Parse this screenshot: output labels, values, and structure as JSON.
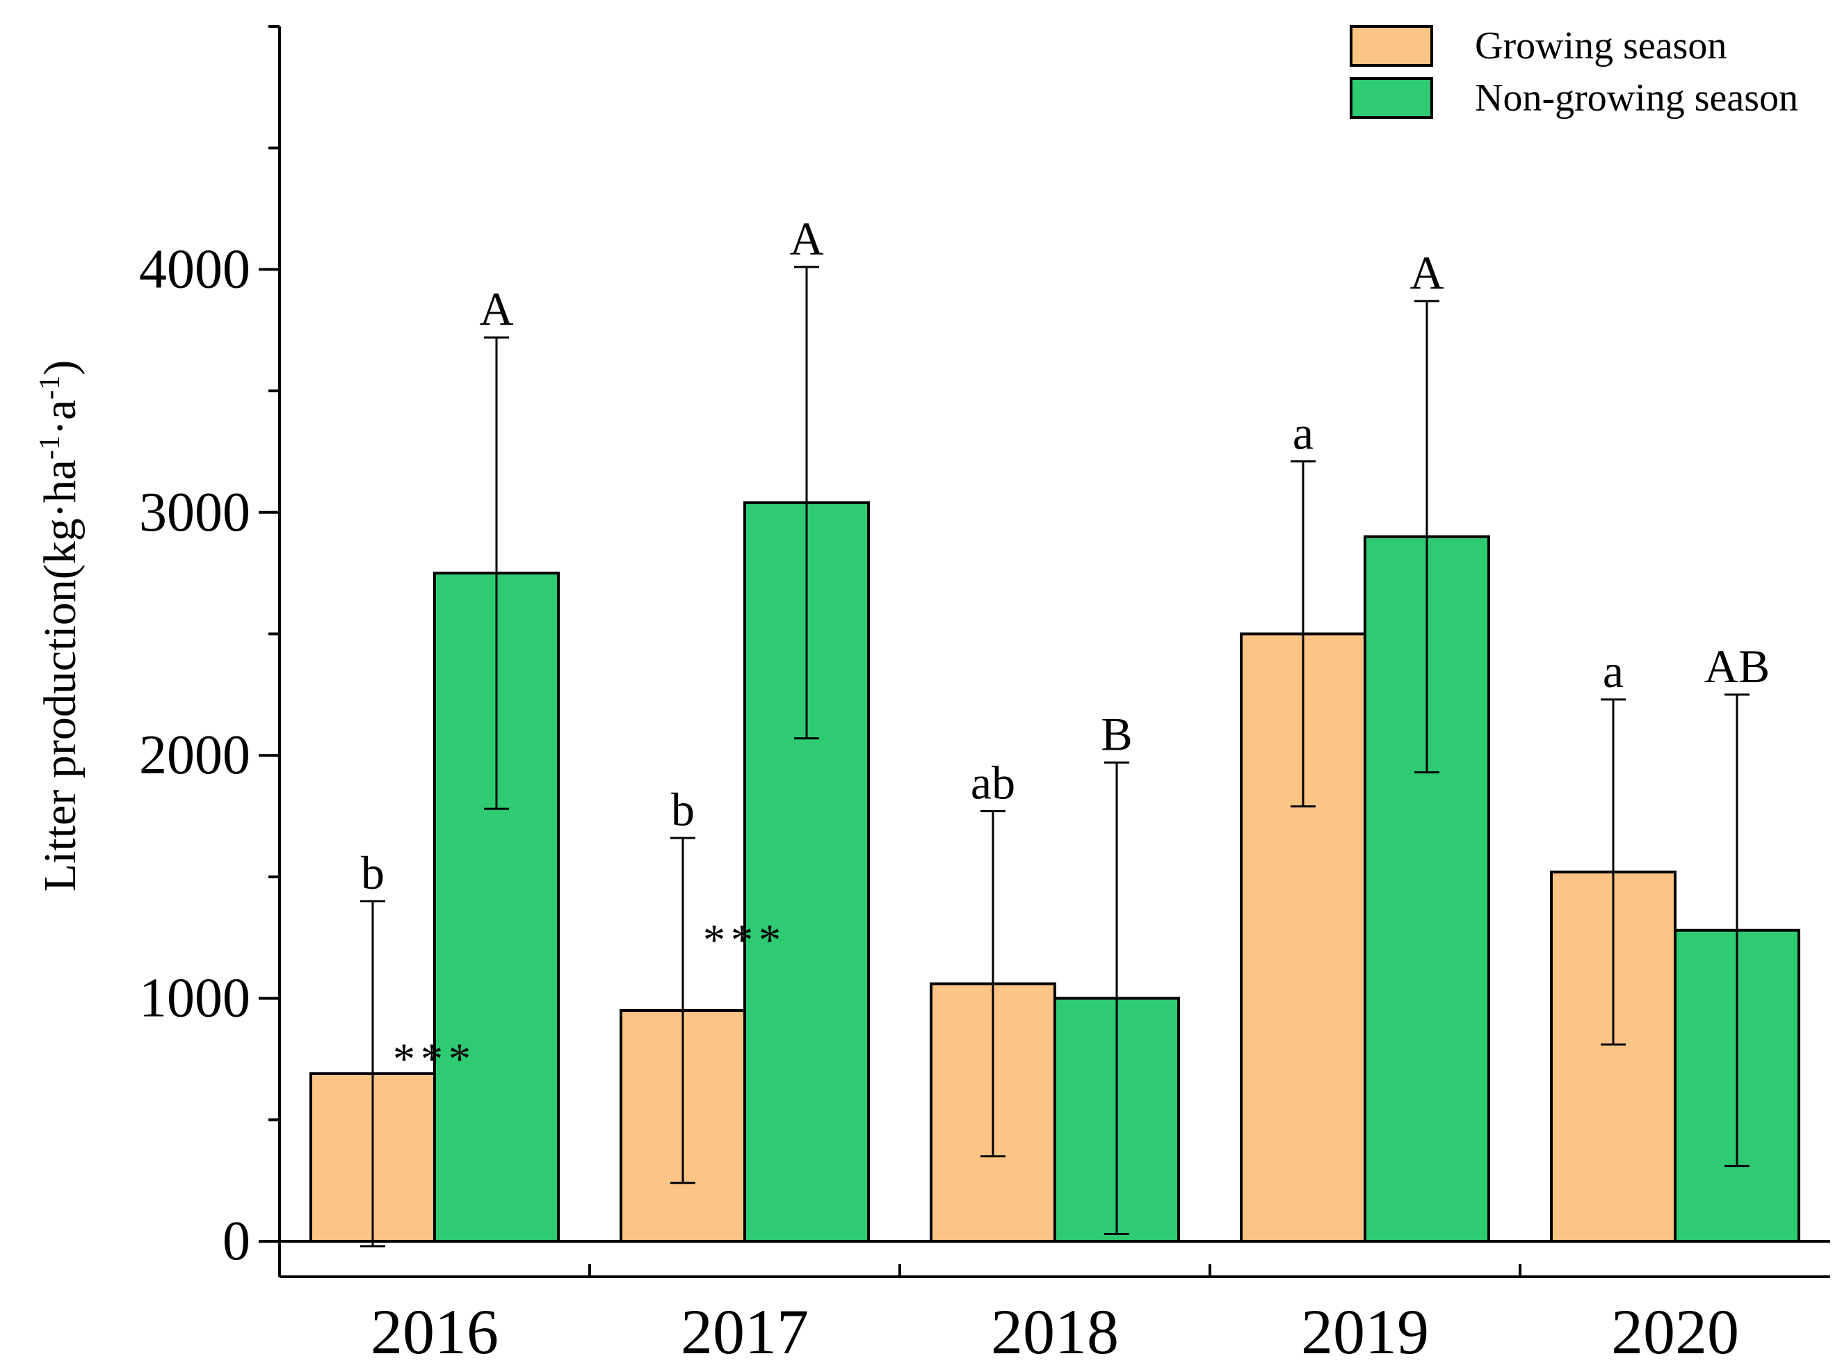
{
  "chart_data": {
    "type": "bar",
    "title": "",
    "xlabel": "",
    "ylabel": "Litter production(kg·ha·a)",
    "ylabel_parts": [
      "Litter production(kg·ha",
      "-1",
      "·a",
      "-1",
      ")"
    ],
    "ylim": [
      0,
      5000
    ],
    "yticks": [
      0,
      1000,
      2000,
      3000,
      4000
    ],
    "categories": [
      "2016",
      "2017",
      "2018",
      "2019",
      "2020"
    ],
    "legend_position": "top-right",
    "series": [
      {
        "name": "Growing season",
        "color": "#FDC585",
        "values": [
          690,
          950,
          1060,
          2500,
          1520
        ],
        "errors": [
          710,
          710,
          710,
          710,
          710
        ],
        "letters": [
          "b",
          "b",
          "ab",
          "a",
          "a"
        ]
      },
      {
        "name": "Non-growing season",
        "color": "#2FCB72",
        "values": [
          2750,
          3040,
          1000,
          2900,
          1280
        ],
        "errors": [
          970,
          970,
          970,
          970,
          970
        ],
        "letters": [
          "A",
          "A",
          "B",
          "A",
          "AB"
        ]
      }
    ],
    "significance": [
      {
        "category": "2016",
        "label": "***"
      },
      {
        "category": "2017",
        "label": "***"
      }
    ]
  }
}
